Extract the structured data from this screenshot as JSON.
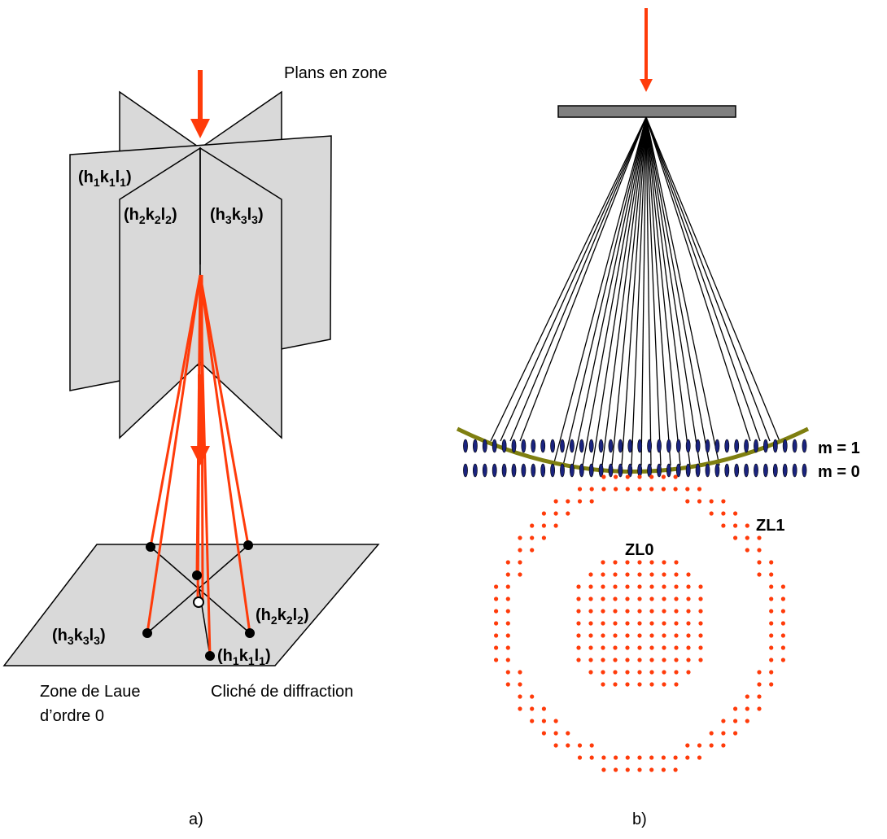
{
  "colors": {
    "beam": "#ff3b0a",
    "plane_fill": "#d9d9d9",
    "plane_stroke": "#000000",
    "specimen_fill": "#808080",
    "ewald_arc": "#7f7f10",
    "node_fill": "#1a237e",
    "spot": "#ff3b0a"
  },
  "panel_a": {
    "caption": "a)",
    "planes_label": "Plans en  zone",
    "plane_labels": [
      {
        "h": "h",
        "i1": "1",
        "k": "k",
        "i2": "1",
        "l": "l",
        "i3": "1"
      },
      {
        "h": "h",
        "i1": "2",
        "k": "k",
        "i2": "2",
        "l": "l",
        "i3": "2"
      },
      {
        "h": "h",
        "i1": "3",
        "k": "k",
        "i2": "3",
        "l": "l",
        "i3": "3"
      }
    ],
    "spot_labels": [
      {
        "h": "h",
        "i1": "3",
        "k": "k",
        "i2": "3",
        "l": "l",
        "i3": "3"
      },
      {
        "h": "h",
        "i1": "2",
        "k": "k",
        "i2": "2",
        "l": "l",
        "i3": "2"
      },
      {
        "h": "h",
        "i1": "1",
        "k": "k",
        "i2": "1",
        "l": "l",
        "i3": "1"
      }
    ],
    "zone_label_line1": "Zone de Laue",
    "zone_label_line2": "d’ordre 0",
    "pattern_label": "Cliché de diffraction"
  },
  "panel_b": {
    "caption": "b)",
    "layer_labels": [
      "m = 1",
      "m = 0"
    ],
    "zone_labels": [
      "ZL0",
      "ZL1"
    ]
  }
}
